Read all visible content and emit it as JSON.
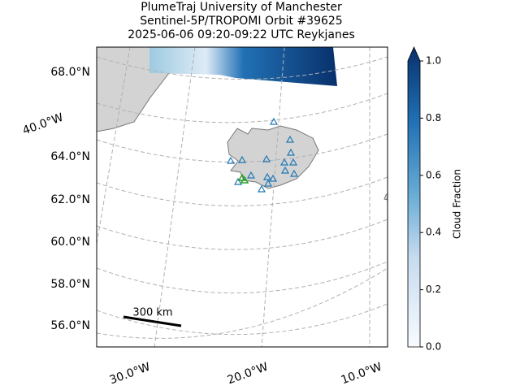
{
  "title": [
    "PlumeTraj    University of Manchester",
    "Sentinel-5P/TROPOMI Orbit #39625",
    "2025-06-06   09:20-09:22 UTC   Reykjanes"
  ],
  "map": {
    "lat_labels": [
      "68.0°N",
      "64.0°N",
      "62.0°N",
      "60.0°N",
      "58.0°N",
      "56.0°N"
    ],
    "lon_labels": [
      "40.0°W",
      "30.0°W",
      "20.0°W",
      "10.0°W"
    ],
    "scale_bar": "300 km"
  },
  "colorbar": {
    "label": "Cloud Fraction",
    "lim": [
      0,
      1
    ],
    "ticks": [
      {
        "value": 0,
        "label": "0.0"
      },
      {
        "value": 0.2,
        "label": "0.2"
      },
      {
        "value": 0.4,
        "label": "0.4"
      },
      {
        "value": 0.6,
        "label": "0.6"
      },
      {
        "value": 0.8,
        "label": "0.8"
      },
      {
        "value": 1,
        "label": "1.0"
      }
    ]
  }
}
